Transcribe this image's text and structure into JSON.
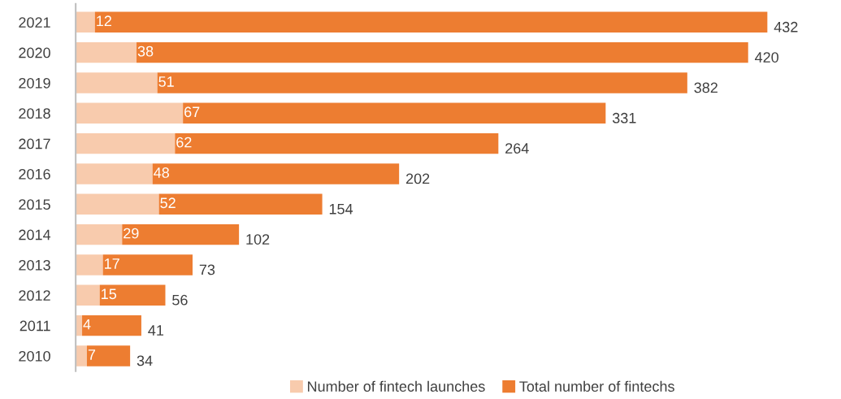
{
  "chart_data": {
    "type": "bar",
    "orientation": "horizontal",
    "stacked": true,
    "categories": [
      "2021",
      "2020",
      "2019",
      "2018",
      "2017",
      "2016",
      "2015",
      "2014",
      "2013",
      "2012",
      "2011",
      "2010"
    ],
    "series": [
      {
        "name": "Number of fintech launches",
        "color": "#f8cbad",
        "values": [
          12,
          38,
          51,
          67,
          62,
          48,
          52,
          29,
          17,
          15,
          4,
          7
        ],
        "value_labels": [
          "12",
          "38",
          "51",
          "67",
          "62",
          "48",
          "52",
          "29",
          "17",
          "15",
          "4",
          "7"
        ]
      },
      {
        "name": "Total number of fintechs",
        "color": "#ed7d31",
        "values": [
          420,
          382,
          331,
          264,
          202,
          154,
          102,
          73,
          56,
          41,
          37,
          27
        ]
      }
    ],
    "totals": [
      "432",
      "420",
      "382",
      "331",
      "264",
      "202",
      "154",
      "102",
      "73",
      "56",
      "41",
      "34"
    ],
    "legend": "bottom",
    "grid": false,
    "tick_labels": "y"
  }
}
